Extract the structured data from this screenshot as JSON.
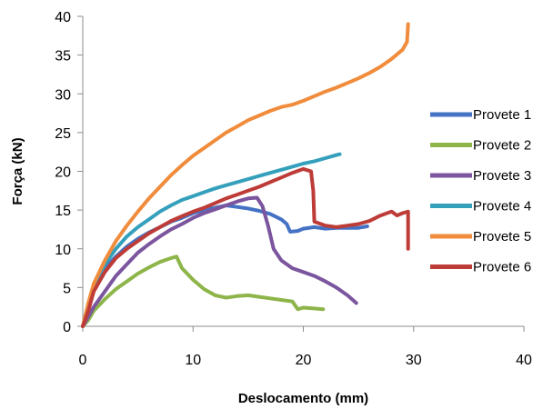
{
  "chart_data": {
    "type": "line",
    "xlabel": "Deslocamento (mm)",
    "ylabel": "Força (kN)",
    "xlim": [
      0,
      40
    ],
    "ylim": [
      0,
      40
    ],
    "xticks": [
      0,
      10,
      20,
      30,
      40
    ],
    "yticks": [
      0,
      5,
      10,
      15,
      20,
      25,
      30,
      35,
      40
    ],
    "grid": false,
    "legend_position": "right",
    "series": [
      {
        "name": "Provete 1",
        "color": "#4472C4",
        "points": [
          [
            0,
            0
          ],
          [
            0.5,
            2.5
          ],
          [
            1,
            5
          ],
          [
            2,
            7.5
          ],
          [
            3,
            9
          ],
          [
            4,
            10.3
          ],
          [
            5,
            11.3
          ],
          [
            6,
            12.1
          ],
          [
            7,
            12.8
          ],
          [
            8,
            13.5
          ],
          [
            9,
            14
          ],
          [
            10,
            14.6
          ],
          [
            11,
            15
          ],
          [
            12,
            15.3
          ],
          [
            13,
            15.6
          ],
          [
            14,
            15.4
          ],
          [
            15,
            15.2
          ],
          [
            16,
            14.9
          ],
          [
            17,
            14.5
          ],
          [
            18,
            13.8
          ],
          [
            18.5,
            13.2
          ],
          [
            18.8,
            12.2
          ],
          [
            19.5,
            12.3
          ],
          [
            20,
            12.6
          ],
          [
            21,
            12.8
          ],
          [
            22,
            12.6
          ],
          [
            23,
            12.7
          ],
          [
            24,
            12.7
          ],
          [
            25,
            12.7
          ],
          [
            25.8,
            12.9
          ]
        ]
      },
      {
        "name": "Provete 2",
        "color": "#8DB54A",
        "points": [
          [
            0,
            0
          ],
          [
            0.5,
            0.8
          ],
          [
            1,
            2
          ],
          [
            2,
            3.5
          ],
          [
            3,
            4.8
          ],
          [
            4,
            5.8
          ],
          [
            5,
            6.8
          ],
          [
            6,
            7.6
          ],
          [
            7,
            8.3
          ],
          [
            8,
            8.8
          ],
          [
            8.5,
            9
          ],
          [
            9,
            7.5
          ],
          [
            10,
            6
          ],
          [
            11,
            4.8
          ],
          [
            12,
            4
          ],
          [
            13,
            3.7
          ],
          [
            14,
            3.9
          ],
          [
            15,
            4
          ],
          [
            16,
            3.8
          ],
          [
            17,
            3.6
          ],
          [
            18,
            3.4
          ],
          [
            19,
            3.2
          ],
          [
            19.5,
            2.2
          ],
          [
            20,
            2.4
          ],
          [
            21,
            2.3
          ],
          [
            21.8,
            2.2
          ]
        ]
      },
      {
        "name": "Provete 3",
        "color": "#7B559E",
        "points": [
          [
            0,
            0
          ],
          [
            1,
            2.5
          ],
          [
            2,
            4.5
          ],
          [
            3,
            6.5
          ],
          [
            4,
            8
          ],
          [
            5,
            9.5
          ],
          [
            6,
            10.6
          ],
          [
            7,
            11.6
          ],
          [
            8,
            12.5
          ],
          [
            9,
            13.2
          ],
          [
            10,
            14
          ],
          [
            11,
            14.6
          ],
          [
            12,
            15.1
          ],
          [
            13,
            15.6
          ],
          [
            14,
            16.1
          ],
          [
            15,
            16.5
          ],
          [
            15.8,
            16.6
          ],
          [
            16.3,
            15.5
          ],
          [
            16.8,
            13
          ],
          [
            17.3,
            10
          ],
          [
            18,
            8.5
          ],
          [
            19,
            7.5
          ],
          [
            20,
            7
          ],
          [
            21,
            6.5
          ],
          [
            22,
            5.8
          ],
          [
            23,
            5
          ],
          [
            24,
            4
          ],
          [
            24.8,
            3
          ]
        ]
      },
      {
        "name": "Provete 4",
        "color": "#35A0BC",
        "points": [
          [
            0,
            0
          ],
          [
            0.5,
            2.5
          ],
          [
            1,
            5
          ],
          [
            2,
            8
          ],
          [
            3,
            10
          ],
          [
            4,
            11.6
          ],
          [
            5,
            12.8
          ],
          [
            6,
            13.8
          ],
          [
            7,
            14.8
          ],
          [
            8,
            15.6
          ],
          [
            9,
            16.3
          ],
          [
            10,
            16.8
          ],
          [
            11,
            17.3
          ],
          [
            12,
            17.8
          ],
          [
            13,
            18.2
          ],
          [
            14,
            18.6
          ],
          [
            15,
            19
          ],
          [
            16,
            19.4
          ],
          [
            17,
            19.8
          ],
          [
            18,
            20.2
          ],
          [
            19,
            20.6
          ],
          [
            20,
            21
          ],
          [
            21,
            21.3
          ],
          [
            22,
            21.7
          ],
          [
            23,
            22.1
          ],
          [
            23.3,
            22.2
          ]
        ]
      },
      {
        "name": "Provete 5",
        "color": "#F08C3C",
        "points": [
          [
            0,
            0
          ],
          [
            0.5,
            3
          ],
          [
            1,
            5.5
          ],
          [
            2,
            8.5
          ],
          [
            3,
            11
          ],
          [
            4,
            13
          ],
          [
            5,
            14.8
          ],
          [
            6,
            16.5
          ],
          [
            7,
            18
          ],
          [
            8,
            19.5
          ],
          [
            9,
            20.8
          ],
          [
            10,
            22
          ],
          [
            11,
            23
          ],
          [
            12,
            24
          ],
          [
            13,
            25
          ],
          [
            14,
            25.8
          ],
          [
            15,
            26.6
          ],
          [
            16,
            27.2
          ],
          [
            17,
            27.8
          ],
          [
            18,
            28.3
          ],
          [
            19,
            28.6
          ],
          [
            20,
            29.1
          ],
          [
            21,
            29.7
          ],
          [
            22,
            30.3
          ],
          [
            23,
            30.8
          ],
          [
            24,
            31.4
          ],
          [
            25,
            32
          ],
          [
            26,
            32.7
          ],
          [
            27,
            33.5
          ],
          [
            28,
            34.5
          ],
          [
            29,
            35.7
          ],
          [
            29.4,
            36.7
          ],
          [
            29.5,
            39
          ]
        ]
      },
      {
        "name": "Provete 6",
        "color": "#BE3C38",
        "points": [
          [
            0,
            0
          ],
          [
            0.5,
            2
          ],
          [
            1,
            4.5
          ],
          [
            2,
            7
          ],
          [
            3,
            8.8
          ],
          [
            4,
            10
          ],
          [
            5,
            11
          ],
          [
            6,
            12
          ],
          [
            7,
            12.8
          ],
          [
            8,
            13.6
          ],
          [
            9,
            14.2
          ],
          [
            10,
            14.8
          ],
          [
            11,
            15.3
          ],
          [
            12,
            15.9
          ],
          [
            13,
            16.5
          ],
          [
            14,
            17
          ],
          [
            15,
            17.5
          ],
          [
            16,
            18
          ],
          [
            17,
            18.6
          ],
          [
            18,
            19.2
          ],
          [
            19,
            19.8
          ],
          [
            20,
            20.3
          ],
          [
            20.7,
            20
          ],
          [
            20.9,
            17.5
          ],
          [
            21,
            13.5
          ],
          [
            22,
            13
          ],
          [
            23,
            12.8
          ],
          [
            24,
            13
          ],
          [
            25,
            13.2
          ],
          [
            26,
            13.6
          ],
          [
            27,
            14.3
          ],
          [
            28,
            14.8
          ],
          [
            28.5,
            14.3
          ],
          [
            29,
            14.6
          ],
          [
            29.5,
            14.8
          ],
          [
            29.5,
            10
          ]
        ]
      }
    ]
  }
}
